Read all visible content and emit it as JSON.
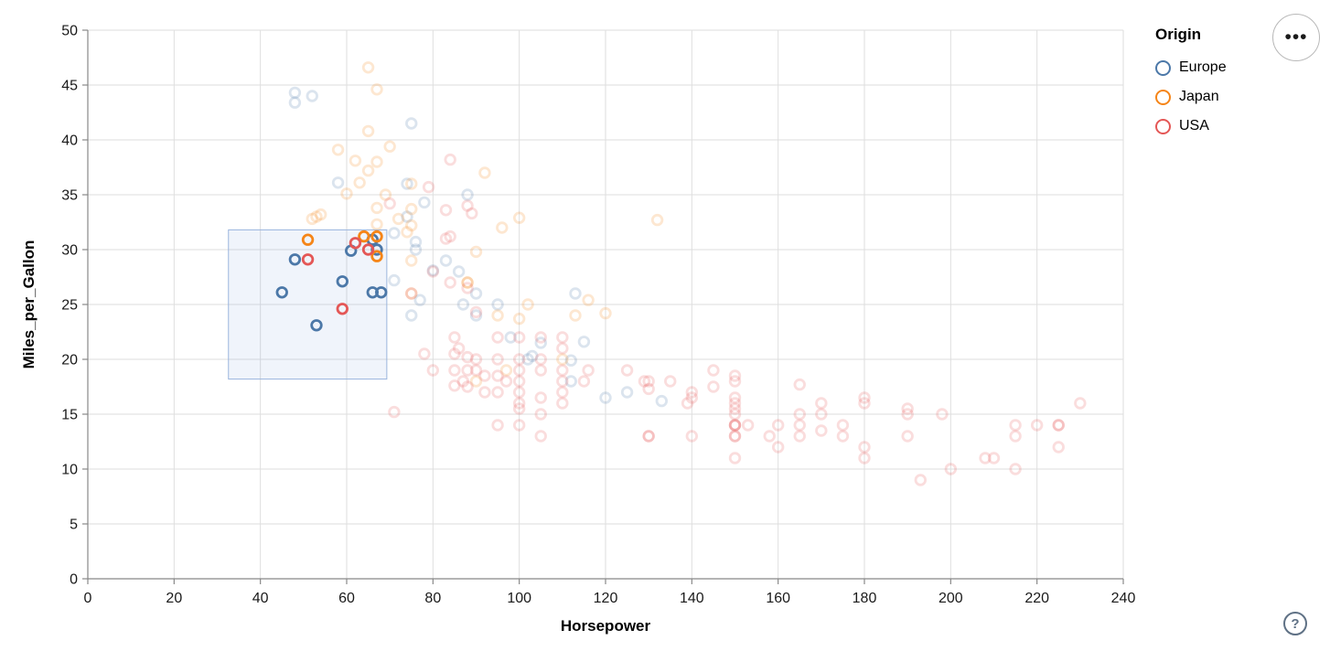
{
  "chart_data": {
    "type": "scatter",
    "title": "",
    "xlabel": "Horsepower",
    "ylabel": "Miles_per_Gallon",
    "xlim": [
      0,
      240
    ],
    "ylim": [
      0,
      50
    ],
    "xticks": [
      0,
      20,
      40,
      60,
      80,
      100,
      120,
      140,
      160,
      180,
      200,
      220,
      240
    ],
    "yticks": [
      0,
      5,
      10,
      15,
      20,
      25,
      30,
      35,
      40,
      45,
      50
    ],
    "grid": true,
    "legend": {
      "title": "Origin",
      "position": "right",
      "entries": [
        {
          "label": "Europe",
          "color": "#4c78a8"
        },
        {
          "label": "Japan",
          "color": "#f58518"
        },
        {
          "label": "USA",
          "color": "#e45756"
        }
      ]
    },
    "point_style": {
      "shape": "open-circle",
      "radius": 5.3,
      "stroke_width": 2.8,
      "selected_opacity": 1,
      "unselected_opacity": 0.2
    },
    "brush": {
      "x_extent": [
        32.6,
        69.3
      ],
      "y_extent": [
        18.2,
        31.8
      ],
      "fill": "#6a8fd8",
      "fill_opacity": 0.1,
      "stroke": "#9ab4dd"
    },
    "series": [
      {
        "name": "Europe",
        "color": "#4c78a8",
        "points": [
          [
            48,
            29.1,
            1
          ],
          [
            61,
            29.9,
            1
          ],
          [
            66,
            30.9,
            1
          ],
          [
            67,
            30,
            1
          ],
          [
            59,
            27.1,
            1
          ],
          [
            45,
            26.1,
            1
          ],
          [
            66,
            26.1,
            1
          ],
          [
            68,
            26.1,
            1
          ],
          [
            53,
            23.1,
            1
          ],
          [
            48,
            44.3,
            0
          ],
          [
            52,
            44,
            0
          ],
          [
            48,
            43.4,
            0
          ],
          [
            75,
            41.5,
            0
          ],
          [
            58,
            36.1,
            0
          ],
          [
            74,
            36,
            0
          ],
          [
            88,
            35,
            0
          ],
          [
            78,
            34.3,
            0
          ],
          [
            74,
            33,
            0
          ],
          [
            71,
            31.5,
            0
          ],
          [
            76,
            30.7,
            0
          ],
          [
            76,
            30,
            0
          ],
          [
            80,
            28.1,
            0
          ],
          [
            86,
            28,
            0
          ],
          [
            83,
            29,
            0
          ],
          [
            87,
            25,
            0
          ],
          [
            90,
            24,
            0
          ],
          [
            95,
            25,
            0
          ],
          [
            113,
            26,
            0
          ],
          [
            90,
            26,
            0
          ],
          [
            71,
            27.2,
            0
          ],
          [
            77,
            25.4,
            0
          ],
          [
            98,
            22,
            0
          ],
          [
            102,
            20,
            0
          ],
          [
            103,
            20.3,
            0
          ],
          [
            115,
            21.6,
            0
          ],
          [
            105,
            21.5,
            0
          ],
          [
            112,
            18,
            0
          ],
          [
            112,
            19.9,
            0
          ],
          [
            120,
            16.5,
            0
          ],
          [
            133,
            16.2,
            0
          ],
          [
            125,
            17,
            0
          ],
          [
            75,
            24,
            0
          ]
        ]
      },
      {
        "name": "Japan",
        "color": "#f58518",
        "points": [
          [
            51,
            30.9,
            1
          ],
          [
            64,
            31.2,
            1
          ],
          [
            67,
            31.2,
            1
          ],
          [
            67,
            29.4,
            1
          ],
          [
            65,
            46.6,
            0
          ],
          [
            67,
            44.6,
            0
          ],
          [
            65,
            40.8,
            0
          ],
          [
            70,
            39.4,
            0
          ],
          [
            58,
            39.1,
            0
          ],
          [
            62,
            38.1,
            0
          ],
          [
            67,
            38,
            0
          ],
          [
            92,
            37,
            0
          ],
          [
            75,
            36,
            0
          ],
          [
            65,
            37.2,
            0
          ],
          [
            63,
            36.1,
            0
          ],
          [
            60,
            35.1,
            0
          ],
          [
            69,
            35,
            0
          ],
          [
            75,
            33.7,
            0
          ],
          [
            67,
            33.8,
            0
          ],
          [
            53,
            33,
            0
          ],
          [
            54,
            33.2,
            0
          ],
          [
            52,
            32.8,
            0
          ],
          [
            67,
            32.3,
            0
          ],
          [
            96,
            32,
            0
          ],
          [
            100,
            32.9,
            0
          ],
          [
            132,
            32.7,
            0
          ],
          [
            72,
            32.8,
            0
          ],
          [
            90,
            29.8,
            0
          ],
          [
            74,
            31.6,
            0
          ],
          [
            75,
            32.2,
            0
          ],
          [
            88,
            27,
            0
          ],
          [
            88,
            27,
            0
          ],
          [
            95,
            24,
            0
          ],
          [
            113,
            24,
            0
          ],
          [
            110,
            20,
            0
          ],
          [
            97,
            19,
            0
          ],
          [
            90,
            18,
            0
          ],
          [
            100,
            23.7,
            0
          ],
          [
            116,
            25.4,
            0
          ],
          [
            120,
            24.2,
            0
          ],
          [
            102,
            25,
            0
          ],
          [
            75,
            29,
            0
          ],
          [
            75,
            26,
            0
          ]
        ]
      },
      {
        "name": "USA",
        "color": "#e45756",
        "points": [
          [
            51,
            29.1,
            1
          ],
          [
            62,
            30.6,
            1
          ],
          [
            65,
            30,
            1
          ],
          [
            59,
            24.6,
            1
          ],
          [
            130,
            18,
            0
          ],
          [
            165,
            15,
            0
          ],
          [
            150,
            18,
            0
          ],
          [
            150,
            16,
            0
          ],
          [
            140,
            17,
            0
          ],
          [
            198,
            15,
            0
          ],
          [
            220,
            14,
            0
          ],
          [
            215,
            14,
            0
          ],
          [
            225,
            14,
            0
          ],
          [
            190,
            15,
            0
          ],
          [
            170,
            15,
            0
          ],
          [
            160,
            14,
            0
          ],
          [
            150,
            15,
            0
          ],
          [
            225,
            12,
            0
          ],
          [
            175,
            14,
            0
          ],
          [
            175,
            13,
            0
          ],
          [
            170,
            16,
            0
          ],
          [
            170,
            13.5,
            0
          ],
          [
            180,
            16.5,
            0
          ],
          [
            180,
            16,
            0
          ],
          [
            180,
            12,
            0
          ],
          [
            180,
            11,
            0
          ],
          [
            190,
            15.5,
            0
          ],
          [
            190,
            13,
            0
          ],
          [
            193,
            9,
            0
          ],
          [
            200,
            10,
            0
          ],
          [
            210,
            11,
            0
          ],
          [
            208,
            11,
            0
          ],
          [
            215,
            13,
            0
          ],
          [
            215,
            10,
            0
          ],
          [
            225,
            14,
            0
          ],
          [
            230,
            16,
            0
          ],
          [
            160,
            12,
            0
          ],
          [
            158,
            13,
            0
          ],
          [
            153,
            14,
            0
          ],
          [
            165,
            14,
            0
          ],
          [
            165,
            13,
            0
          ],
          [
            165,
            17.7,
            0
          ],
          [
            145,
            19,
            0
          ],
          [
            145,
            17.5,
            0
          ],
          [
            140,
            16.5,
            0
          ],
          [
            139,
            16,
            0
          ],
          [
            140,
            13,
            0
          ],
          [
            135,
            18,
            0
          ],
          [
            129,
            18,
            0
          ],
          [
            130,
            17.3,
            0
          ],
          [
            130,
            13,
            0
          ],
          [
            130,
            13,
            0
          ],
          [
            125,
            19,
            0
          ],
          [
            150,
            18.5,
            0
          ],
          [
            150,
            16.5,
            0
          ],
          [
            150,
            15.5,
            0
          ],
          [
            150,
            14,
            0
          ],
          [
            150,
            14,
            0
          ],
          [
            150,
            14,
            0
          ],
          [
            150,
            13,
            0
          ],
          [
            150,
            13,
            0
          ],
          [
            150,
            11,
            0
          ],
          [
            85,
            22,
            0
          ],
          [
            85,
            20.5,
            0
          ],
          [
            85,
            19,
            0
          ],
          [
            85,
            17.6,
            0
          ],
          [
            86,
            21,
            0
          ],
          [
            87,
            18,
            0
          ],
          [
            88,
            20.2,
            0
          ],
          [
            88,
            19,
            0
          ],
          [
            88,
            17.5,
            0
          ],
          [
            90,
            20,
            0
          ],
          [
            90,
            19,
            0
          ],
          [
            92,
            18.5,
            0
          ],
          [
            92,
            17,
            0
          ],
          [
            95,
            22,
            0
          ],
          [
            95,
            20,
            0
          ],
          [
            95,
            18.5,
            0
          ],
          [
            95,
            17,
            0
          ],
          [
            97,
            18,
            0
          ],
          [
            100,
            22,
            0
          ],
          [
            100,
            20,
            0
          ],
          [
            100,
            19,
            0
          ],
          [
            100,
            18,
            0
          ],
          [
            100,
            17,
            0
          ],
          [
            100,
            16,
            0
          ],
          [
            100,
            15.5,
            0
          ],
          [
            105,
            22,
            0
          ],
          [
            105,
            20,
            0
          ],
          [
            105,
            19,
            0
          ],
          [
            105,
            16.5,
            0
          ],
          [
            105,
            15,
            0
          ],
          [
            110,
            22,
            0
          ],
          [
            110,
            21,
            0
          ],
          [
            110,
            19,
            0
          ],
          [
            110,
            18,
            0
          ],
          [
            110,
            17,
            0
          ],
          [
            110,
            16,
            0
          ],
          [
            115,
            18,
            0
          ],
          [
            116,
            19,
            0
          ],
          [
            78,
            20.5,
            0
          ],
          [
            80,
            19,
            0
          ],
          [
            95,
            14,
            0
          ],
          [
            100,
            14,
            0
          ],
          [
            105,
            13,
            0
          ],
          [
            84,
            38.2,
            0
          ],
          [
            88,
            34,
            0
          ],
          [
            89,
            33.3,
            0
          ],
          [
            83,
            33.6,
            0
          ],
          [
            83,
            31,
            0
          ],
          [
            84,
            31.2,
            0
          ],
          [
            70,
            34.2,
            0
          ],
          [
            79,
            35.7,
            0
          ],
          [
            90,
            24.3,
            0
          ],
          [
            80,
            28,
            0
          ],
          [
            75,
            26,
            0
          ],
          [
            84,
            27,
            0
          ],
          [
            88,
            26.5,
            0
          ],
          [
            71,
            15.2,
            0
          ]
        ]
      }
    ],
    "axis_style": {
      "grid_color": "#dedede",
      "domain_color": "#888888",
      "tick_color": "#888888",
      "label_color": "#1a1a1a"
    }
  },
  "controls": {
    "menu_button_label": "•••",
    "help_button_label": "?"
  }
}
